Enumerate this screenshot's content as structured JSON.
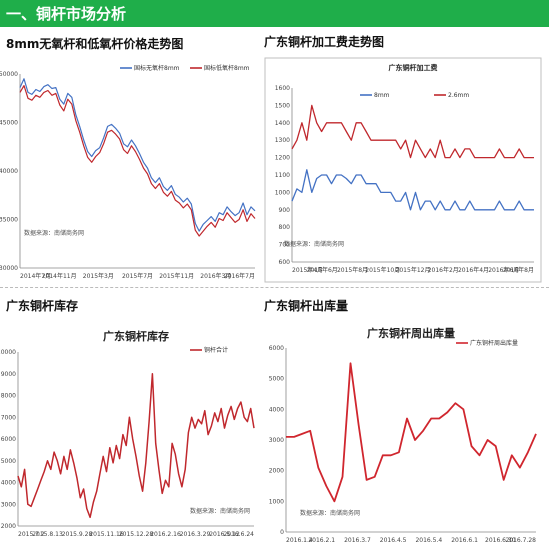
{
  "section_title": "一、铜杆市场分析",
  "panel_titles": {
    "tl": "8mm无氧杆和低氧杆价格走势图",
    "tr": "广东铜杆加工费走势图",
    "bl": "广东铜杆库存",
    "br": "广东铜杆出库量"
  },
  "colors": {
    "banner": "#1fae4a",
    "blue": "#4472c4",
    "red": "#c0282d",
    "red2": "#d0262e"
  },
  "chart_data": [
    {
      "type": "line",
      "title": "",
      "ylim": [
        30000,
        50000
      ],
      "yticks": [
        "50000",
        "45000",
        "40000",
        "35000",
        "30000"
      ],
      "xticks": [
        "2014年7月",
        "2014年11月",
        "2015年3月",
        "2015年7月",
        "2015年11月",
        "2016年3月",
        "2016年7月"
      ],
      "source": "数据来源：南储商务网",
      "series": [
        {
          "name": "国标无氧杆8mm",
          "color": "#4472c4",
          "values": [
            48600,
            49500,
            48100,
            47900,
            48400,
            48200,
            48700,
            48900,
            48500,
            48600,
            47400,
            46900,
            48000,
            47600,
            45800,
            44600,
            43200,
            42000,
            41500,
            42100,
            42400,
            43400,
            44600,
            44800,
            44400,
            43900,
            42800,
            42500,
            43200,
            42600,
            41800,
            40900,
            40300,
            39300,
            38800,
            39300,
            38400,
            38000,
            38500,
            37600,
            37300,
            36800,
            37200,
            36600,
            34600,
            33800,
            34500,
            34900,
            35300,
            34800,
            35700,
            35500,
            36300,
            35800,
            35400,
            35700,
            36700,
            35500,
            36300,
            35900
          ]
        },
        {
          "name": "国标低氧杆8mm",
          "color": "#c0282d",
          "values": [
            48100,
            48800,
            47500,
            47300,
            47800,
            47600,
            48100,
            48300,
            47800,
            48000,
            46800,
            46200,
            47400,
            46900,
            45200,
            44000,
            42600,
            41400,
            40900,
            41500,
            41900,
            42800,
            44000,
            44200,
            43800,
            43300,
            42200,
            41800,
            42600,
            42000,
            41200,
            40300,
            39700,
            38700,
            38200,
            38700,
            37800,
            37400,
            37900,
            37000,
            36700,
            36200,
            36600,
            36000,
            33900,
            33300,
            33800,
            34300,
            34700,
            34200,
            35100,
            34900,
            35700,
            35200,
            34700,
            35000,
            36000,
            34800,
            35600,
            35100
          ]
        }
      ]
    },
    {
      "type": "line",
      "title": "广东铜杆加工费",
      "ylim": [
        600,
        1600
      ],
      "yticks": [
        "1600",
        "1500",
        "1400",
        "1300",
        "1200",
        "1100",
        "1000",
        "900",
        "800",
        "700",
        "600"
      ],
      "xticks": [
        "2015年4月",
        "2015年6月",
        "2015年8月",
        "2015年10月",
        "2015年12月",
        "2016年2月",
        "2016年4月",
        "2016年6月",
        "2016年8月"
      ],
      "source": "数据来源：南储商务网",
      "series": [
        {
          "name": "8mm",
          "color": "#4472c4",
          "values": [
            950,
            1020,
            1000,
            1130,
            1000,
            1080,
            1100,
            1100,
            1050,
            1100,
            1100,
            1080,
            1050,
            1100,
            1100,
            1050,
            1050,
            1050,
            1000,
            1000,
            1000,
            950,
            950,
            1000,
            900,
            1000,
            900,
            950,
            950,
            900,
            950,
            900,
            900,
            950,
            900,
            900,
            950,
            900,
            900,
            900,
            900,
            900,
            950,
            900,
            900,
            900,
            950,
            900,
            900,
            900
          ]
        },
        {
          "name": "2.6mm",
          "color": "#c0282d",
          "values": [
            1250,
            1300,
            1400,
            1300,
            1500,
            1400,
            1350,
            1400,
            1400,
            1400,
            1400,
            1350,
            1300,
            1400,
            1400,
            1350,
            1300,
            1300,
            1300,
            1300,
            1300,
            1300,
            1250,
            1300,
            1200,
            1300,
            1250,
            1200,
            1250,
            1200,
            1300,
            1200,
            1200,
            1250,
            1200,
            1250,
            1250,
            1200,
            1200,
            1200,
            1200,
            1200,
            1250,
            1200,
            1200,
            1200,
            1250,
            1200,
            1200,
            1200
          ]
        }
      ]
    },
    {
      "type": "line",
      "title": "广东铜杆库存",
      "ylim": [
        2000,
        10000
      ],
      "yticks": [
        "10000",
        "9000",
        "8000",
        "7000",
        "6000",
        "5000",
        "4000",
        "3000",
        "2000"
      ],
      "xticks": [
        "2015.7.2",
        "2015.8.13",
        "2015.9.28",
        "2015.11.16",
        "2015.12.28",
        "2016.2.16",
        "2016.3.29",
        "2016.5.12",
        "2016.6.24"
      ],
      "source": "数据来源：南储商务网",
      "series": [
        {
          "name": "铜杆合计",
          "color": "#c0282d",
          "values": [
            4300,
            3800,
            4600,
            3000,
            2900,
            3300,
            3700,
            4100,
            4500,
            5000,
            4600,
            5400,
            5000,
            4400,
            5200,
            4600,
            5500,
            4900,
            4200,
            3300,
            3700,
            2800,
            2400,
            3100,
            3600,
            4400,
            5200,
            4500,
            5600,
            4900,
            5700,
            5100,
            6200,
            5700,
            7000,
            6000,
            5200,
            4300,
            3600,
            4900,
            6800,
            9000,
            5800,
            4600,
            3500,
            4100,
            3800,
            5800,
            5300,
            4400,
            3800,
            4600,
            6300,
            7000,
            6500,
            6900,
            6700,
            7300,
            6200,
            6600,
            7200,
            6800,
            7400,
            6500,
            7100,
            7500,
            6900,
            7400,
            7700,
            7000,
            6800,
            7400,
            6500
          ]
        }
      ]
    },
    {
      "type": "line",
      "title": "广东铜杆周出库量",
      "ylim": [
        0,
        6000
      ],
      "yticks": [
        "6000",
        "5000",
        "4000",
        "3000",
        "2000",
        "1000",
        "0"
      ],
      "xticks": [
        "2016.1.4",
        "2016.2.1",
        "2016.3.7",
        "2016.4.5",
        "2016.5.4",
        "2016.6.1",
        "2016.6.30",
        "2016.7.28"
      ],
      "source": "数据来源：南储商务网",
      "series": [
        {
          "name": "广东铜杆周出库量",
          "color": "#d0262e",
          "values": [
            3100,
            3100,
            3200,
            3300,
            2100,
            1500,
            1000,
            1800,
            5500,
            3500,
            1700,
            1800,
            2500,
            2500,
            2600,
            3700,
            3000,
            3300,
            3700,
            3700,
            3900,
            4200,
            4000,
            2800,
            2500,
            3000,
            2800,
            1700,
            2500,
            2100,
            2600,
            3200
          ]
        }
      ]
    }
  ]
}
